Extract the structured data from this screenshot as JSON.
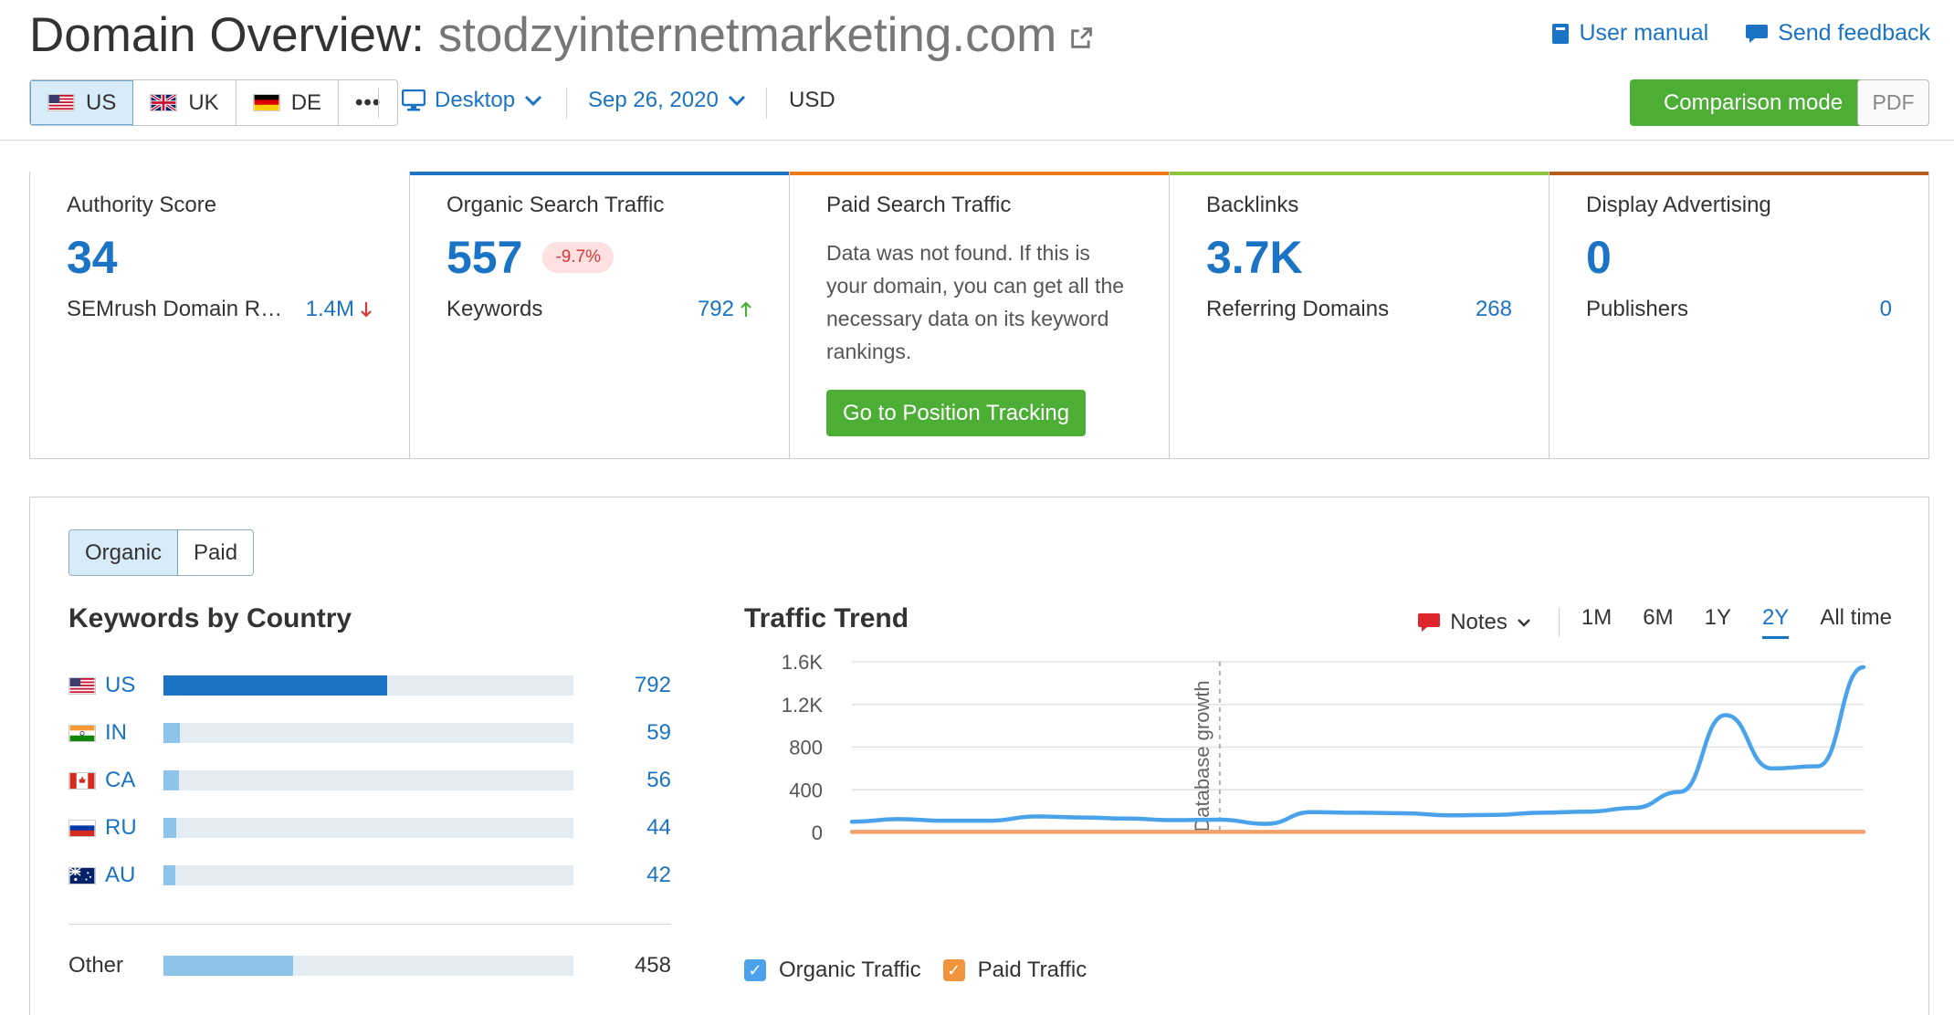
{
  "header": {
    "title_prefix": "Domain Overview:",
    "domain": "stodzyinternetmarketing.com",
    "user_manual": "User manual",
    "send_feedback": "Send feedback"
  },
  "db_tabs": [
    {
      "code": "US",
      "active": true
    },
    {
      "code": "UK",
      "active": false
    },
    {
      "code": "DE",
      "active": false
    }
  ],
  "more_label": "•••",
  "device": "Desktop",
  "date": "Sep 26, 2020",
  "currency": "USD",
  "comparison_mode": "Comparison mode",
  "pdf": "PDF",
  "cards": {
    "authority": {
      "title": "Authority Score",
      "value": "34",
      "label": "SEMrush Domain R…",
      "num": "1.4M",
      "trend": "down",
      "bar_color": "#ffffff"
    },
    "organic": {
      "title": "Organic Search Traffic",
      "value": "557",
      "badge": "-9.7%",
      "label": "Keywords",
      "num": "792",
      "trend": "up",
      "bar_color": "#1a73c4"
    },
    "paid": {
      "title": "Paid Search Traffic",
      "desc": "Data was not found. If this is your domain, you can get all the necessary data on its keyword rankings.",
      "button": "Go to Position Tracking",
      "bar_color": "#ef7a1a"
    },
    "backlinks": {
      "title": "Backlinks",
      "value": "3.7K",
      "label": "Referring Domains",
      "num": "268",
      "bar_color": "#8cc63e"
    },
    "display": {
      "title": "Display Advertising",
      "value": "0",
      "label": "Publishers",
      "num": "0",
      "bar_color": "#b85c1b"
    }
  },
  "segment": {
    "organic": "Organic",
    "paid": "Paid",
    "active": "organic"
  },
  "keywords_by_country": {
    "title": "Keywords by Country",
    "rows": [
      {
        "code": "US",
        "value": 792
      },
      {
        "code": "IN",
        "value": 59
      },
      {
        "code": "CA",
        "value": 56
      },
      {
        "code": "RU",
        "value": 44
      },
      {
        "code": "AU",
        "value": 42
      }
    ],
    "other_label": "Other",
    "other_value": 458
  },
  "traffic_trend": {
    "title": "Traffic Trend",
    "notes": "Notes",
    "ranges": [
      "1M",
      "6M",
      "1Y",
      "2Y",
      "All time"
    ],
    "active_range": "2Y",
    "legend": {
      "organic": "Organic Traffic",
      "paid": "Paid Traffic"
    }
  },
  "chart_data": {
    "type": "line",
    "title": "Traffic Trend",
    "yticks": [
      "1.6K",
      "1.2K",
      "800",
      "400",
      "0"
    ],
    "ylim": [
      0,
      1600
    ],
    "grid": true,
    "annotation": "Database growth",
    "annotation_index": 8,
    "series": [
      {
        "name": "Organic Traffic",
        "color": "#4aa3ea",
        "values": [
          100,
          125,
          110,
          110,
          150,
          140,
          130,
          115,
          120,
          80,
          190,
          185,
          180,
          160,
          165,
          185,
          195,
          230,
          380,
          1100,
          600,
          620,
          1550
        ]
      },
      {
        "name": "Paid Traffic",
        "color": "#f3a06a",
        "values": [
          5,
          5,
          5,
          5,
          5,
          5,
          5,
          5,
          5,
          5,
          5,
          5,
          5,
          5,
          5,
          5,
          5,
          5,
          5,
          5,
          5,
          5,
          5
        ]
      }
    ]
  }
}
